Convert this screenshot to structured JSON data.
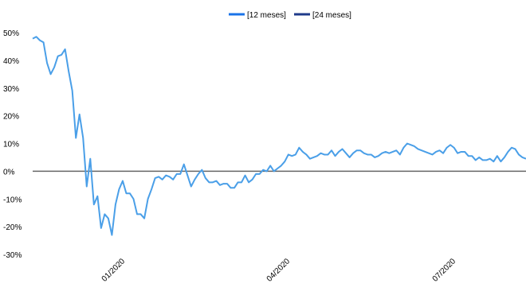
{
  "chart_data": {
    "type": "line",
    "title": "",
    "xlabel": "",
    "ylabel": "",
    "legend_position": "top-center",
    "grid": false,
    "zero_line": true,
    "ylim": [
      -30,
      50
    ],
    "y_ticks": [
      50,
      40,
      30,
      20,
      10,
      0,
      -10,
      -20,
      -30
    ],
    "y_tick_labels": [
      "50%",
      "40%",
      "30%",
      "20%",
      "10%",
      "0%",
      "-10%",
      "-20%",
      "-30%"
    ],
    "x_tick_labels": [
      "01/2020",
      "04/2020",
      "07/2020"
    ],
    "series": [
      {
        "name": "[12 meses]",
        "color": "#4a9fe8",
        "legend_color": "#1a73e8",
        "values": [
          47.8,
          48.5,
          47.2,
          46.5,
          39,
          35,
          37.5,
          41.5,
          42,
          44,
          36,
          29,
          12,
          20.5,
          12,
          -5.5,
          4.5,
          -12,
          -9,
          -20.5,
          -15.5,
          -17,
          -23,
          -12,
          -6.5,
          -3.5,
          -8,
          -8,
          -10,
          -15.5,
          -15.5,
          -17,
          -10,
          -6.5,
          -2.5,
          -2,
          -3,
          -1.5,
          -2,
          -3,
          -1,
          -1,
          2.5,
          -1.5,
          -5.5,
          -3,
          -1,
          0.5,
          -2.5,
          -4,
          -4,
          -3.5,
          -5,
          -4.5,
          -4.5,
          -6,
          -6,
          -4,
          -4,
          -1.5,
          -4,
          -3,
          -1,
          -1,
          0.5,
          0,
          2,
          0,
          1,
          2,
          3.5,
          6,
          5.5,
          6,
          8.5,
          7,
          6,
          4.5,
          5,
          5.5,
          6.5,
          6,
          6,
          7.5,
          5.5,
          7,
          8,
          6.5,
          5,
          6.5,
          7.5,
          7.5,
          6.5,
          6,
          6,
          5,
          5.5,
          6.5,
          7,
          6.5,
          7,
          7.5,
          6,
          8.5,
          10,
          9.5,
          9,
          8,
          7.5,
          7,
          6.5,
          6,
          7,
          7.5,
          6.5,
          8.5,
          9.5,
          8.5,
          6.5,
          7,
          7,
          5.5,
          5.5,
          4,
          5,
          4,
          4,
          4.5,
          3.5,
          5.5,
          3.5,
          5,
          7,
          8.5,
          8,
          6,
          5,
          4.5
        ]
      },
      {
        "name": "[24 meses]",
        "color": "#1f3a8a",
        "values": []
      }
    ]
  }
}
